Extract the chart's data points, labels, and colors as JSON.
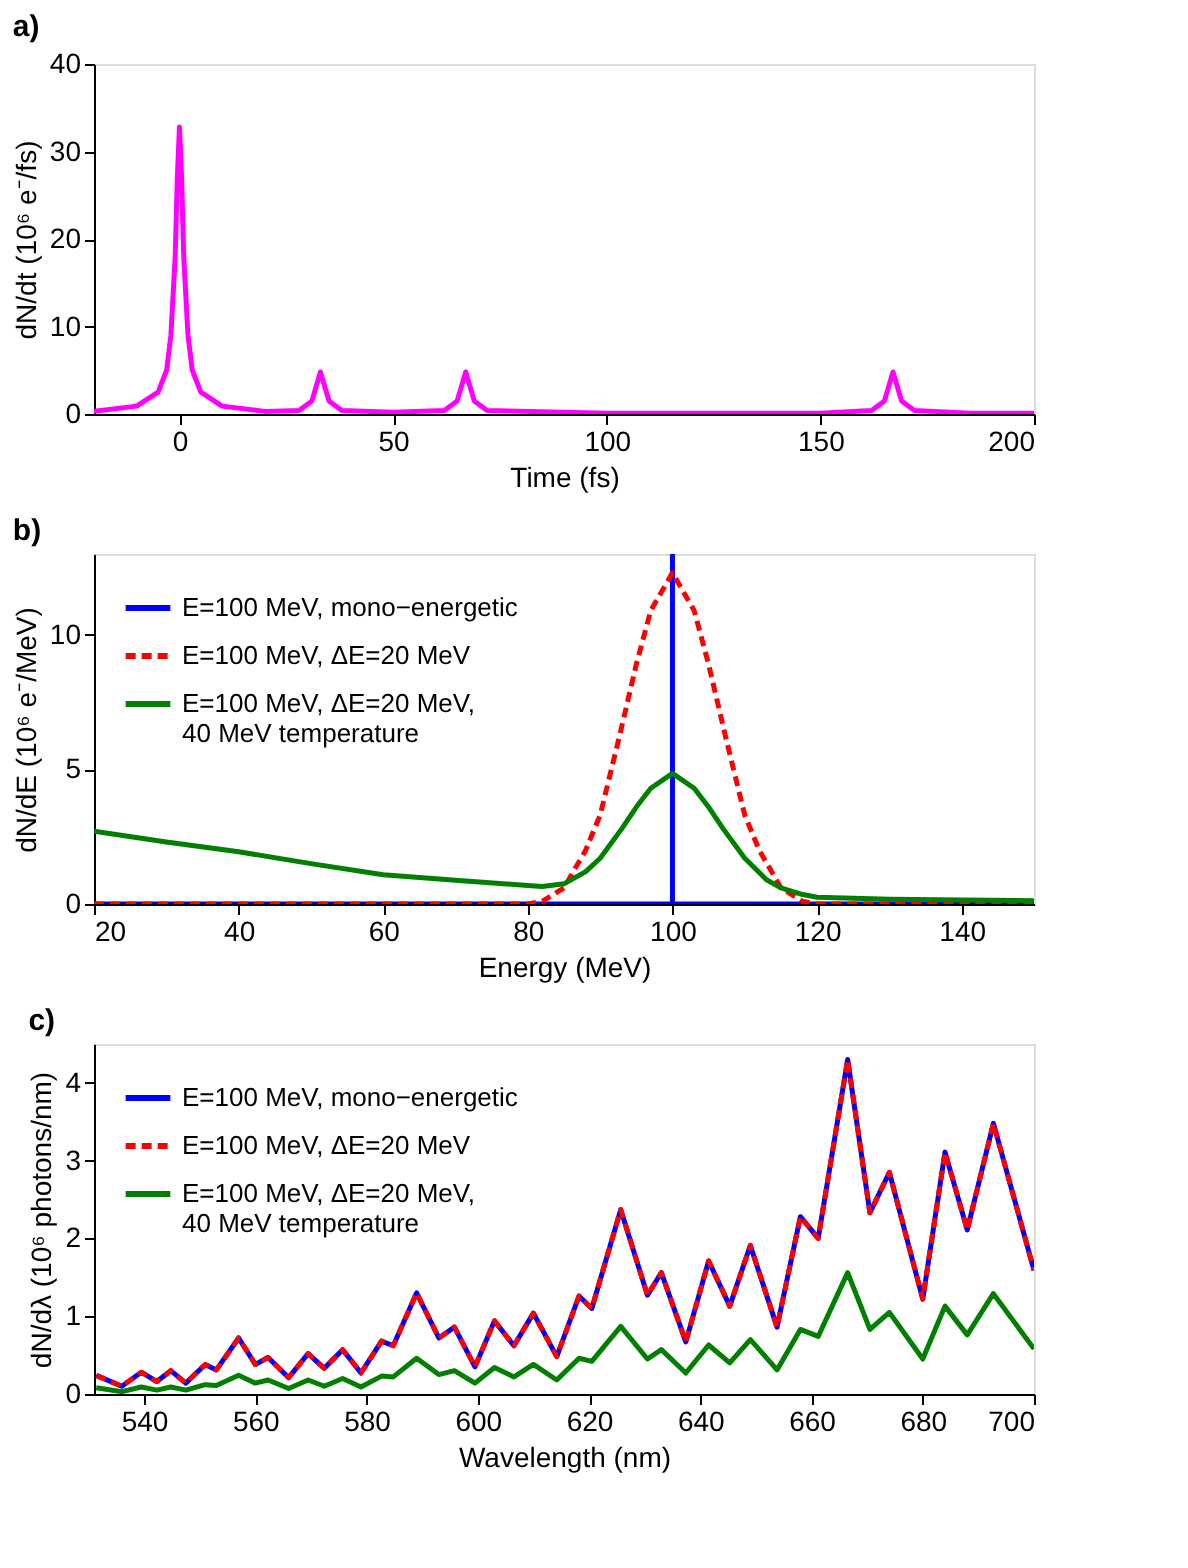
{
  "chart_data": [
    {
      "type": "line",
      "title": "a)",
      "xlabel": "Time (fs)",
      "ylabel": "dN/dt (10⁶ e⁻/fs)",
      "xlim": [
        -20,
        200
      ],
      "xticks": [
        0,
        50,
        100,
        150,
        200
      ],
      "ylim": [
        0,
        40
      ],
      "yticks": [
        0,
        10,
        20,
        30,
        40
      ],
      "grid": false,
      "legend": false,
      "x": [
        -20,
        -10,
        -5,
        -3,
        -2,
        -1,
        -0.5,
        0,
        0.5,
        1,
        2,
        3,
        5,
        10,
        20,
        28,
        31,
        33,
        35,
        38,
        50,
        62,
        65,
        67,
        69,
        72,
        100,
        150,
        162,
        165,
        167,
        169,
        172,
        185,
        200
      ],
      "series": [
        {
          "color": "#ff00ff",
          "line_style": "solid",
          "values": [
            0.3,
            0.9,
            2.5,
            5,
            9,
            18,
            27,
            32.8,
            27,
            18,
            9,
            5,
            2.5,
            0.9,
            0.3,
            0.4,
            1.5,
            4.8,
            1.5,
            0.4,
            0.2,
            0.4,
            1.5,
            4.8,
            1.5,
            0.4,
            0.1,
            0.1,
            0.4,
            1.5,
            4.8,
            1.5,
            0.4,
            0.1,
            0.1
          ]
        }
      ]
    },
    {
      "type": "line",
      "title": "b)",
      "xlabel": "Energy (MeV)",
      "ylabel": "dN/dE (10⁶ e⁻/MeV)",
      "xlim": [
        20,
        150
      ],
      "xticks": [
        20,
        40,
        60,
        80,
        100,
        120,
        140
      ],
      "ylim": [
        0,
        13
      ],
      "yticks": [
        0,
        5,
        10
      ],
      "grid": false,
      "legend": "top left",
      "series": [
        {
          "name": "E=100 MeV, mono−energetic",
          "color": "#0000ff",
          "line_style": "solid",
          "x": [
            20,
            100,
            100,
            100,
            150
          ],
          "values": [
            0,
            0,
            13,
            0,
            0
          ]
        },
        {
          "name": "E=100 MeV, ΔE=20 MeV",
          "color": "#ff0000",
          "line_style": "dashed",
          "x": [
            20,
            80,
            82,
            85,
            88,
            90,
            92.6,
            95,
            97,
            100,
            103,
            105,
            107.4,
            110,
            112,
            115,
            118,
            120,
            150
          ],
          "values": [
            0,
            0,
            0.1,
            0.6,
            2.0,
            3.3,
            6.15,
            8.9,
            10.9,
            12.3,
            10.9,
            8.9,
            6.15,
            3.3,
            2.0,
            0.6,
            0.1,
            0,
            0
          ]
        },
        {
          "name": "E=100 MeV, ΔE=20 MeV,\n40 MeV temperature",
          "color": "#007f00",
          "line_style": "solid",
          "x": [
            20,
            30,
            40,
            50,
            60,
            70,
            80,
            82,
            85,
            88,
            90,
            93,
            95,
            97,
            100,
            103,
            105,
            107,
            110,
            113,
            115,
            118,
            120,
            130,
            140,
            150
          ],
          "values": [
            2.7,
            2.3,
            1.94,
            1.5,
            1.09,
            0.88,
            0.69,
            0.65,
            0.75,
            1.2,
            1.7,
            2.8,
            3.6,
            4.3,
            4.85,
            4.3,
            3.6,
            2.8,
            1.7,
            0.9,
            0.6,
            0.35,
            0.25,
            0.18,
            0.15,
            0.12
          ]
        }
      ]
    },
    {
      "type": "line",
      "title": "c)",
      "xlabel": "Wavelength (nm)",
      "ylabel": "dN/dλ (10⁶ photons/nm)",
      "xlim": [
        531,
        700
      ],
      "xticks": [
        540,
        560,
        580,
        600,
        620,
        640,
        660,
        680,
        700
      ],
      "ylim": [
        0,
        4.5
      ],
      "yticks": [
        0,
        1,
        2,
        3,
        4
      ],
      "grid": false,
      "legend": "top left",
      "x": [
        531.4,
        536,
        539.5,
        542.3,
        544.8,
        547.5,
        551,
        553,
        557,
        560,
        562.3,
        566,
        569.5,
        572.4,
        575.7,
        579,
        582.7,
        584.8,
        589,
        593,
        595.8,
        599.5,
        603,
        606.5,
        610,
        614.2,
        618.2,
        620.5,
        625.7,
        630.5,
        633,
        637.4,
        641.5,
        645.3,
        649,
        653.8,
        658,
        661.2,
        666.5,
        670.5,
        674,
        680,
        684,
        688,
        692.7,
        700
      ],
      "series": [
        {
          "name": "E=100 MeV, mono−energetic",
          "color": "#0000ff",
          "line_style": "solid",
          "values": [
            0.24,
            0.1,
            0.28,
            0.16,
            0.3,
            0.14,
            0.38,
            0.31,
            0.72,
            0.38,
            0.47,
            0.21,
            0.52,
            0.33,
            0.57,
            0.27,
            0.68,
            0.62,
            1.3,
            0.72,
            0.86,
            0.35,
            0.94,
            0.62,
            1.04,
            0.48,
            1.26,
            1.1,
            2.37,
            1.27,
            1.56,
            0.67,
            1.71,
            1.13,
            1.91,
            0.86,
            2.28,
            2.0,
            4.3,
            2.33,
            2.85,
            1.22,
            3.11,
            2.11,
            3.48,
            1.59
          ]
        },
        {
          "name": "E=100 MeV, ΔE=20 MeV",
          "color": "#ff0000",
          "line_style": "dashed",
          "values": [
            0.24,
            0.1,
            0.28,
            0.16,
            0.3,
            0.14,
            0.38,
            0.31,
            0.72,
            0.38,
            0.47,
            0.21,
            0.52,
            0.33,
            0.57,
            0.27,
            0.68,
            0.62,
            1.3,
            0.72,
            0.86,
            0.35,
            0.94,
            0.62,
            1.04,
            0.48,
            1.26,
            1.1,
            2.37,
            1.27,
            1.56,
            0.67,
            1.71,
            1.13,
            1.91,
            0.86,
            2.28,
            2.0,
            4.3,
            2.33,
            2.85,
            1.22,
            3.11,
            2.11,
            3.48,
            1.59
          ]
        },
        {
          "name": "E=100 MeV, ΔE=20 MeV,\n40 MeV temperature",
          "color": "#007f00",
          "line_style": "solid",
          "values": [
            0.08,
            0.03,
            0.09,
            0.05,
            0.09,
            0.05,
            0.12,
            0.11,
            0.24,
            0.14,
            0.18,
            0.07,
            0.18,
            0.1,
            0.2,
            0.09,
            0.23,
            0.22,
            0.46,
            0.25,
            0.3,
            0.14,
            0.34,
            0.22,
            0.38,
            0.18,
            0.46,
            0.42,
            0.87,
            0.45,
            0.57,
            0.27,
            0.63,
            0.4,
            0.7,
            0.31,
            0.83,
            0.74,
            1.56,
            0.83,
            1.05,
            0.45,
            1.13,
            0.76,
            1.29,
            0.58
          ]
        }
      ]
    }
  ]
}
